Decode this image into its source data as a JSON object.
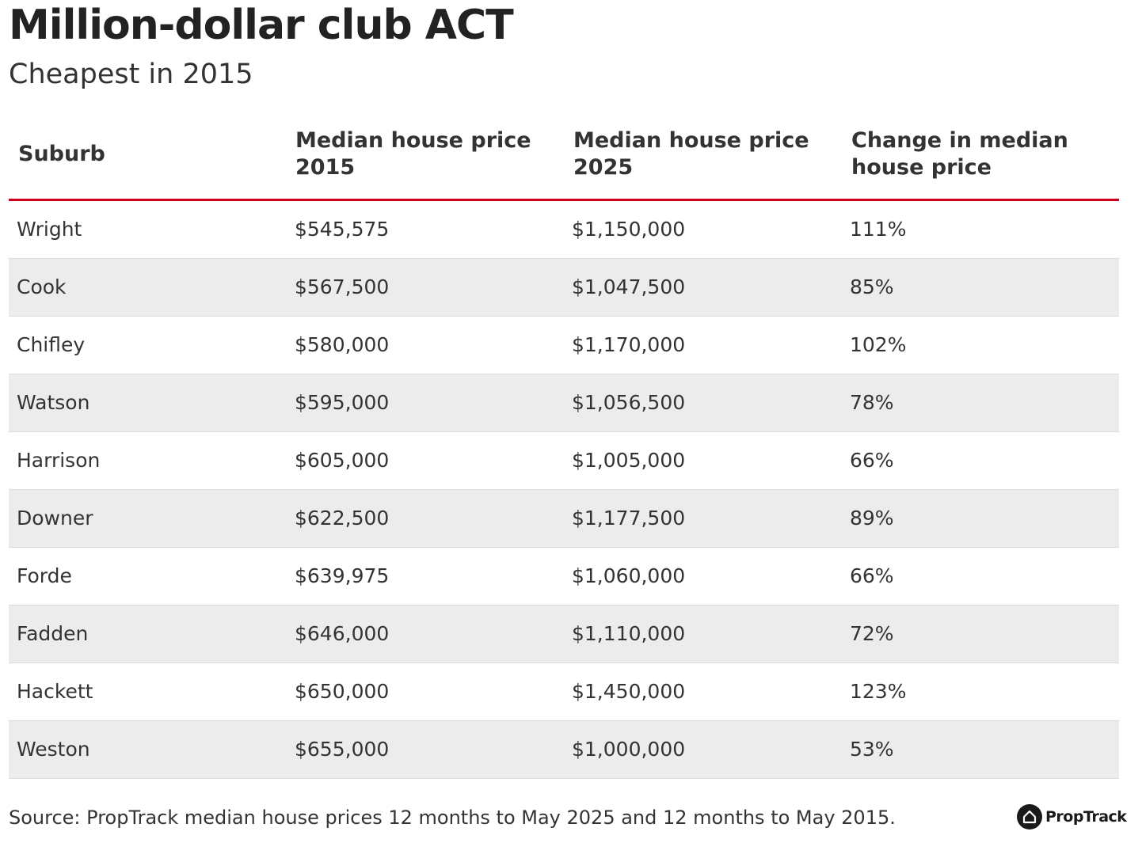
{
  "header": {
    "title": "Million-dollar club ACT",
    "subtitle": "Cheapest in 2015"
  },
  "chart_data": {
    "type": "table",
    "title": "Million-dollar club ACT",
    "subtitle": "Cheapest in 2015",
    "columns": [
      "Suburb",
      "Median house price 2015",
      "Median house price 2025",
      "Change in median house price"
    ],
    "rows": [
      [
        "Wright",
        "$545,575",
        "$1,150,000",
        "111%"
      ],
      [
        "Cook",
        "$567,500",
        "$1,047,500",
        "85%"
      ],
      [
        "Chifley",
        "$580,000",
        "$1,170,000",
        "102%"
      ],
      [
        "Watson",
        "$595,000",
        "$1,056,500",
        "78%"
      ],
      [
        "Harrison",
        "$605,000",
        "$1,005,000",
        "66%"
      ],
      [
        "Downer",
        "$622,500",
        "$1,177,500",
        "89%"
      ],
      [
        "Forde",
        "$639,975",
        "$1,060,000",
        "66%"
      ],
      [
        "Fadden",
        "$646,000",
        "$1,110,000",
        "72%"
      ],
      [
        "Hackett",
        "$650,000",
        "$1,450,000",
        "123%"
      ],
      [
        "Weston",
        "$655,000",
        "$1,000,000",
        "53%"
      ]
    ]
  },
  "footer": {
    "source": "Source: PropTrack median house prices 12 months to May 2025 and 12 months to May 2015.",
    "logo_text": "PropTrack",
    "logo_icon": "house-icon"
  },
  "colors": {
    "header_rule": "#d0021b",
    "alt_row": "#ececec",
    "text": "#333333"
  }
}
